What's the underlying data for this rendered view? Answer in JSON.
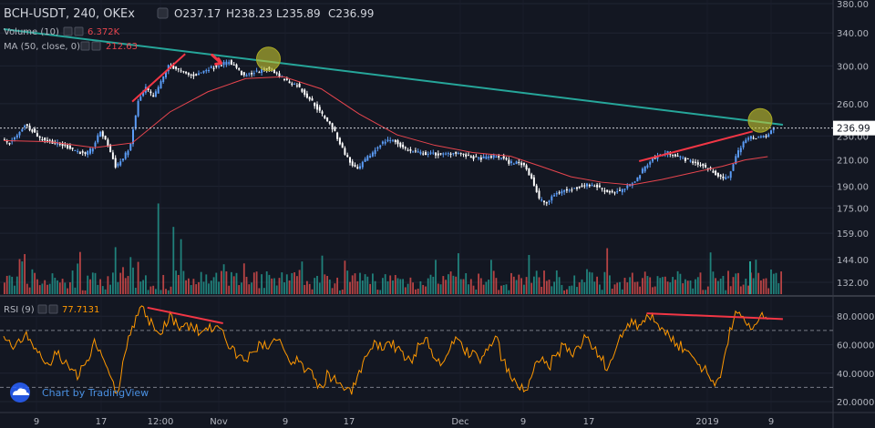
{
  "chart_data": [
    {
      "type": "candlestick",
      "title": "BCH-USDT, 240, OKEx",
      "symbol": "BCH-USDT",
      "interval": "240",
      "exchange": "OKEx",
      "ohlc_label": {
        "o": "O237.17",
        "h": "H238.23",
        "l": "L235.89",
        "c": "C236.99"
      },
      "last_price": 236.99,
      "last_price_label": "236.99",
      "price_axis": {
        "ticks": [
          132,
          144,
          159,
          175,
          190,
          210,
          230,
          260,
          300,
          340,
          380
        ],
        "tick_labels": [
          "132.00",
          "144.00",
          "159.00",
          "175.00",
          "190.00",
          "210.00",
          "230.00",
          "260.00",
          "300.00",
          "340.00",
          "380.00"
        ],
        "scale": "log"
      },
      "x_axis": {
        "tick_labels": [
          "9",
          "17",
          "12:00",
          "Nov",
          "9",
          "17",
          "Dec",
          "9",
          "17",
          "2019",
          "9"
        ]
      },
      "price_path": [
        [
          0,
          226
        ],
        [
          1,
          224
        ],
        [
          2,
          230
        ],
        [
          3,
          240
        ],
        [
          4,
          235
        ],
        [
          5,
          228
        ],
        [
          6,
          226
        ],
        [
          7,
          224
        ],
        [
          8,
          222
        ],
        [
          9,
          220
        ],
        [
          10,
          217
        ],
        [
          11,
          214
        ],
        [
          12,
          220
        ],
        [
          13,
          234
        ],
        [
          14,
          222
        ],
        [
          15,
          205
        ],
        [
          16,
          211
        ],
        [
          17,
          222
        ],
        [
          18,
          262
        ],
        [
          19,
          276
        ],
        [
          20,
          266
        ],
        [
          21,
          282
        ],
        [
          22,
          300
        ],
        [
          23,
          297
        ],
        [
          24,
          292
        ],
        [
          25,
          289
        ],
        [
          26,
          291
        ],
        [
          27,
          296
        ],
        [
          28,
          299
        ],
        [
          29,
          302
        ],
        [
          30,
          305
        ],
        [
          31,
          298
        ],
        [
          32,
          288
        ],
        [
          33,
          292
        ],
        [
          34,
          294
        ],
        [
          35,
          297
        ],
        [
          36,
          293
        ],
        [
          37,
          287
        ],
        [
          38,
          282
        ],
        [
          39,
          279
        ],
        [
          40,
          270
        ],
        [
          41,
          262
        ],
        [
          42,
          252
        ],
        [
          43,
          244
        ],
        [
          44,
          233
        ],
        [
          45,
          219
        ],
        [
          46,
          208
        ],
        [
          47,
          202
        ],
        [
          48,
          210
        ],
        [
          49,
          216
        ],
        [
          50,
          223
        ],
        [
          51,
          227
        ],
        [
          52,
          225
        ],
        [
          53,
          220
        ],
        [
          54,
          217
        ],
        [
          55,
          216
        ],
        [
          56,
          215
        ],
        [
          57,
          215
        ],
        [
          58,
          214
        ],
        [
          59,
          215
        ],
        [
          60,
          216
        ],
        [
          61,
          214
        ],
        [
          62,
          212
        ],
        [
          63,
          211
        ],
        [
          64,
          212
        ],
        [
          65,
          213
        ],
        [
          66,
          212
        ],
        [
          67,
          208
        ],
        [
          68,
          208
        ],
        [
          69,
          206
        ],
        [
          70,
          196
        ],
        [
          71,
          181
        ],
        [
          72,
          178
        ],
        [
          73,
          184
        ],
        [
          74,
          187
        ],
        [
          75,
          187
        ],
        [
          76,
          189
        ],
        [
          77,
          191
        ],
        [
          78,
          191
        ],
        [
          79,
          189
        ],
        [
          80,
          186
        ],
        [
          81,
          186
        ],
        [
          82,
          187
        ],
        [
          83,
          191
        ],
        [
          84,
          196
        ],
        [
          85,
          205
        ],
        [
          86,
          211
        ],
        [
          87,
          214
        ],
        [
          88,
          216
        ],
        [
          89,
          214
        ],
        [
          90,
          211
        ],
        [
          91,
          209
        ],
        [
          92,
          207
        ],
        [
          93,
          204
        ],
        [
          94,
          201
        ],
        [
          95,
          196
        ],
        [
          96,
          196
        ],
        [
          97,
          213
        ],
        [
          98,
          225
        ],
        [
          99,
          229
        ],
        [
          100,
          229
        ],
        [
          101,
          229
        ],
        [
          102,
          237
        ]
      ],
      "series": [
        {
          "name": "Volume (10)",
          "value_label": "6.372K",
          "color": "#e8454e",
          "type": "bar"
        },
        {
          "name": "MA (50, close, 0)",
          "value_label": "212.63",
          "color": "#e8454e",
          "type": "line",
          "values": [
            [
              0,
              226
            ],
            [
              6,
              225
            ],
            [
              12,
              220
            ],
            [
              17,
              224
            ],
            [
              22,
              252
            ],
            [
              27,
              272
            ],
            [
              32,
              286
            ],
            [
              37,
              288
            ],
            [
              42,
              275
            ],
            [
              47,
              250
            ],
            [
              52,
              231
            ],
            [
              57,
              222
            ],
            [
              62,
              216
            ],
            [
              67,
              213
            ],
            [
              71,
              205
            ],
            [
              75,
              197
            ],
            [
              79,
              193
            ],
            [
              83,
              191
            ],
            [
              87,
              195
            ],
            [
              91,
              200
            ],
            [
              95,
              205
            ],
            [
              98,
              210
            ],
            [
              101,
              212.63
            ]
          ]
        },
        {
          "name": "trend line",
          "color": "#26a69a",
          "type": "line",
          "values": [
            [
              0,
              345
            ],
            [
              103,
              240
            ]
          ]
        }
      ],
      "candle_colors": {
        "up": "#5b9cf6",
        "down": "#ffffff"
      },
      "annotations": [
        {
          "type": "line",
          "color": "#f23645",
          "from": [
            17,
            262
          ],
          "to": [
            24,
            314
          ]
        },
        {
          "type": "arrow",
          "color": "#f23645",
          "at": [
            29,
            300
          ]
        },
        {
          "type": "circle",
          "color": "#c8c832",
          "at": [
            35,
            308
          ]
        },
        {
          "type": "line",
          "color": "#f23645",
          "from": [
            84,
            209
          ],
          "to": [
            99,
            234
          ]
        },
        {
          "type": "circle",
          "color": "#c8c832",
          "at": [
            100,
            244
          ]
        }
      ]
    },
    {
      "type": "line",
      "title": "RSI (9)",
      "value_label": "77.7131",
      "color": "#ff9800",
      "ylim": [
        13,
        91
      ],
      "y_axis": {
        "ticks": [
          20,
          40,
          60,
          80
        ],
        "tick_labels": [
          "20.0000",
          "40.0000",
          "60.0000",
          "80.0000"
        ]
      },
      "bands": [
        30,
        70
      ],
      "values": [
        [
          0,
          66
        ],
        [
          1,
          59
        ],
        [
          2,
          64
        ],
        [
          3,
          69
        ],
        [
          4,
          57
        ],
        [
          5,
          51
        ],
        [
          6,
          46
        ],
        [
          7,
          53
        ],
        [
          8,
          47
        ],
        [
          9,
          43
        ],
        [
          10,
          38
        ],
        [
          11,
          49
        ],
        [
          12,
          64
        ],
        [
          13,
          52
        ],
        [
          14,
          39
        ],
        [
          15,
          26
        ],
        [
          16,
          53
        ],
        [
          17,
          73
        ],
        [
          18,
          86
        ],
        [
          19,
          80
        ],
        [
          20,
          70
        ],
        [
          21,
          68
        ],
        [
          22,
          83
        ],
        [
          23,
          73
        ],
        [
          24,
          75
        ],
        [
          25,
          72
        ],
        [
          26,
          68
        ],
        [
          27,
          70
        ],
        [
          28,
          73
        ],
        [
          29,
          70
        ],
        [
          30,
          57
        ],
        [
          31,
          52
        ],
        [
          32,
          49
        ],
        [
          33,
          55
        ],
        [
          34,
          61
        ],
        [
          35,
          57
        ],
        [
          36,
          63
        ],
        [
          37,
          57
        ],
        [
          38,
          46
        ],
        [
          39,
          48
        ],
        [
          40,
          42
        ],
        [
          41,
          36
        ],
        [
          42,
          31
        ],
        [
          43,
          40
        ],
        [
          44,
          33
        ],
        [
          45,
          28
        ],
        [
          46,
          25
        ],
        [
          47,
          42
        ],
        [
          48,
          52
        ],
        [
          49,
          63
        ],
        [
          50,
          56
        ],
        [
          51,
          62
        ],
        [
          52,
          58
        ],
        [
          53,
          49
        ],
        [
          54,
          47
        ],
        [
          55,
          60
        ],
        [
          56,
          65
        ],
        [
          57,
          50
        ],
        [
          58,
          47
        ],
        [
          59,
          57
        ],
        [
          60,
          64
        ],
        [
          61,
          53
        ],
        [
          62,
          56
        ],
        [
          63,
          47
        ],
        [
          64,
          56
        ],
        [
          65,
          66
        ],
        [
          66,
          49
        ],
        [
          67,
          37
        ],
        [
          68,
          30
        ],
        [
          69,
          28
        ],
        [
          70,
          41
        ],
        [
          71,
          49
        ],
        [
          72,
          44
        ],
        [
          73,
          52
        ],
        [
          74,
          60
        ],
        [
          75,
          53
        ],
        [
          76,
          59
        ],
        [
          77,
          65
        ],
        [
          78,
          57
        ],
        [
          79,
          49
        ],
        [
          80,
          45
        ],
        [
          81,
          58
        ],
        [
          82,
          70
        ],
        [
          83,
          78
        ],
        [
          84,
          74
        ],
        [
          85,
          81
        ],
        [
          86,
          76
        ],
        [
          87,
          72
        ],
        [
          88,
          66
        ],
        [
          89,
          61
        ],
        [
          90,
          57
        ],
        [
          91,
          52
        ],
        [
          92,
          46
        ],
        [
          93,
          40
        ],
        [
          94,
          31
        ],
        [
          95,
          44
        ],
        [
          96,
          72
        ],
        [
          97,
          82
        ],
        [
          98,
          76
        ],
        [
          99,
          71
        ],
        [
          100,
          80
        ],
        [
          101,
          77.7
        ]
      ],
      "annotations": [
        {
          "type": "line",
          "color": "#f23645",
          "from": [
            19,
            86
          ],
          "to": [
            29,
            75
          ]
        },
        {
          "type": "line",
          "color": "#f23645",
          "from": [
            85,
            82
          ],
          "to": [
            103,
            78
          ]
        }
      ]
    }
  ],
  "watermark": {
    "text": "Chart by TradingView"
  },
  "colors": {
    "background": "#131722",
    "grid": "#1f2433",
    "axis_text": "#b2b5be",
    "volume_up": "#26a69a",
    "volume_down": "#ef5350"
  }
}
